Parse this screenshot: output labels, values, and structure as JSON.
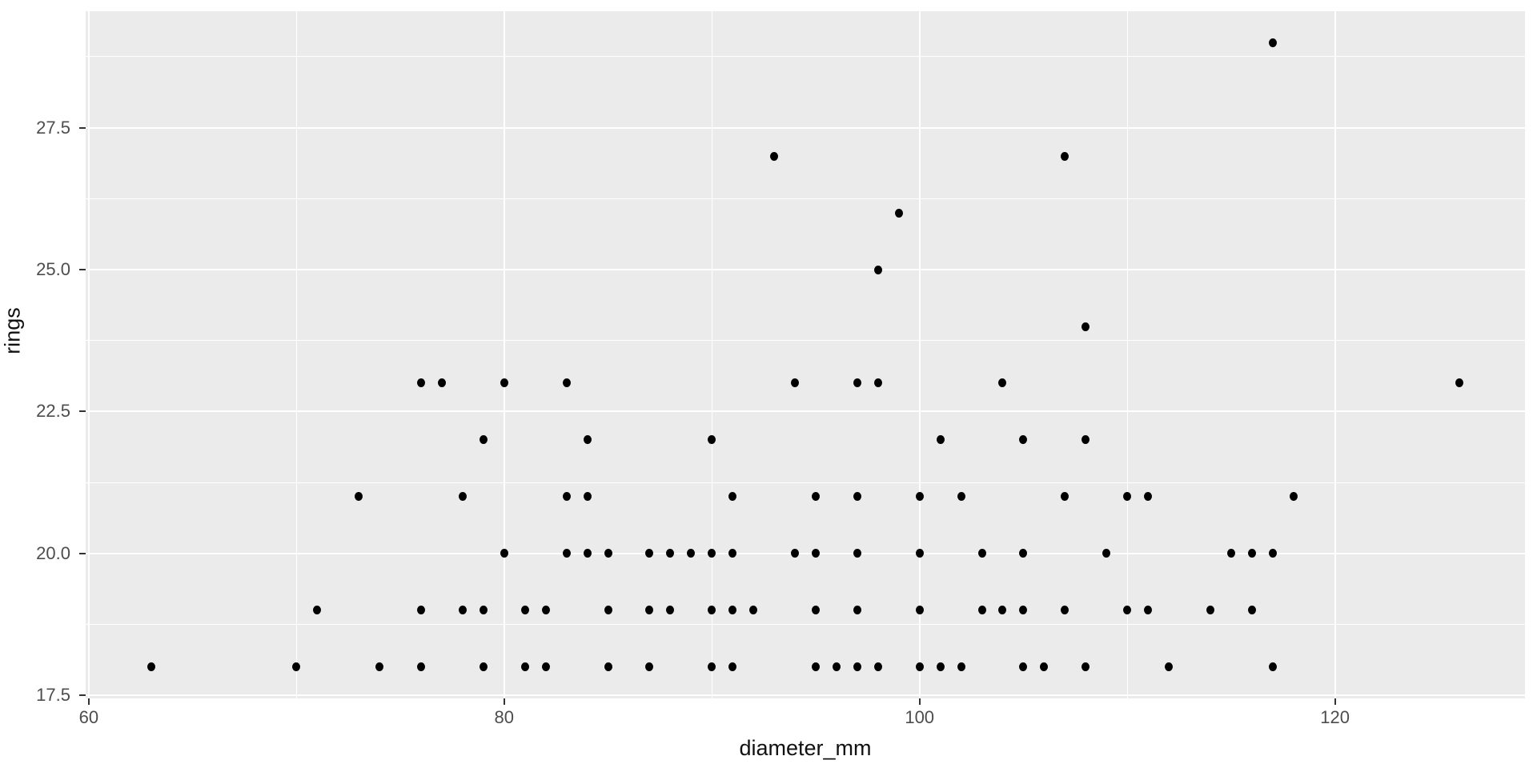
{
  "chart_data": {
    "type": "scatter",
    "title": "",
    "xlabel": "diameter_mm",
    "ylabel": "rings",
    "xlim": [
      59.85,
      129.15
    ],
    "ylim": [
      17.45,
      29.55
    ],
    "x_major_ticks": [
      60,
      80,
      100,
      120
    ],
    "x_tick_labels": [
      "60",
      "80",
      "100",
      "120"
    ],
    "x_minor_ticks": [
      70,
      90,
      110
    ],
    "y_major_ticks": [
      17.5,
      20.0,
      22.5,
      25.0,
      27.5
    ],
    "y_tick_labels": [
      "17.5",
      "20.0",
      "22.5",
      "25.0",
      "27.5"
    ],
    "y_minor_ticks": [
      18.75,
      21.25,
      23.75,
      26.25,
      28.75
    ],
    "grid": "on",
    "legend": "none",
    "style": {
      "panel_background": "#EBEBEB",
      "grid_color": "#FFFFFF",
      "point_color": "#000000",
      "tick_label_color": "#4D4D4D",
      "axis_title_color": "#111111",
      "tick_mark_color": "#333333"
    },
    "points": [
      [
        63,
        18
      ],
      [
        70,
        18
      ],
      [
        74,
        18
      ],
      [
        76,
        18
      ],
      [
        79,
        18
      ],
      [
        81,
        18
      ],
      [
        82,
        18
      ],
      [
        85,
        18
      ],
      [
        87,
        18
      ],
      [
        90,
        18
      ],
      [
        91,
        18
      ],
      [
        95,
        18
      ],
      [
        96,
        18
      ],
      [
        97,
        18
      ],
      [
        98,
        18
      ],
      [
        100,
        18
      ],
      [
        101,
        18
      ],
      [
        102,
        18
      ],
      [
        105,
        18
      ],
      [
        106,
        18
      ],
      [
        108,
        18
      ],
      [
        112,
        18
      ],
      [
        117,
        18
      ],
      [
        71,
        19
      ],
      [
        76,
        19
      ],
      [
        78,
        19
      ],
      [
        79,
        19
      ],
      [
        81,
        19
      ],
      [
        82,
        19
      ],
      [
        85,
        19
      ],
      [
        87,
        19
      ],
      [
        88,
        19
      ],
      [
        90,
        19
      ],
      [
        91,
        19
      ],
      [
        92,
        19
      ],
      [
        95,
        19
      ],
      [
        97,
        19
      ],
      [
        100,
        19
      ],
      [
        103,
        19
      ],
      [
        104,
        19
      ],
      [
        105,
        19
      ],
      [
        107,
        19
      ],
      [
        110,
        19
      ],
      [
        111,
        19
      ],
      [
        114,
        19
      ],
      [
        116,
        19
      ],
      [
        80,
        20
      ],
      [
        83,
        20
      ],
      [
        84,
        20
      ],
      [
        85,
        20
      ],
      [
        87,
        20
      ],
      [
        88,
        20
      ],
      [
        89,
        20
      ],
      [
        90,
        20
      ],
      [
        91,
        20
      ],
      [
        94,
        20
      ],
      [
        95,
        20
      ],
      [
        97,
        20
      ],
      [
        100,
        20
      ],
      [
        103,
        20
      ],
      [
        105,
        20
      ],
      [
        109,
        20
      ],
      [
        115,
        20
      ],
      [
        116,
        20
      ],
      [
        117,
        20
      ],
      [
        73,
        21
      ],
      [
        78,
        21
      ],
      [
        83,
        21
      ],
      [
        84,
        21
      ],
      [
        91,
        21
      ],
      [
        95,
        21
      ],
      [
        97,
        21
      ],
      [
        100,
        21
      ],
      [
        102,
        21
      ],
      [
        107,
        21
      ],
      [
        110,
        21
      ],
      [
        111,
        21
      ],
      [
        118,
        21
      ],
      [
        79,
        22
      ],
      [
        84,
        22
      ],
      [
        90,
        22
      ],
      [
        101,
        22
      ],
      [
        105,
        22
      ],
      [
        108,
        22
      ],
      [
        76,
        23
      ],
      [
        77,
        23
      ],
      [
        80,
        23
      ],
      [
        83,
        23
      ],
      [
        94,
        23
      ],
      [
        97,
        23
      ],
      [
        98,
        23
      ],
      [
        104,
        23
      ],
      [
        126,
        23
      ],
      [
        108,
        24
      ],
      [
        98,
        25
      ],
      [
        99,
        26
      ],
      [
        93,
        27
      ],
      [
        107,
        27
      ],
      [
        117,
        29
      ]
    ]
  }
}
